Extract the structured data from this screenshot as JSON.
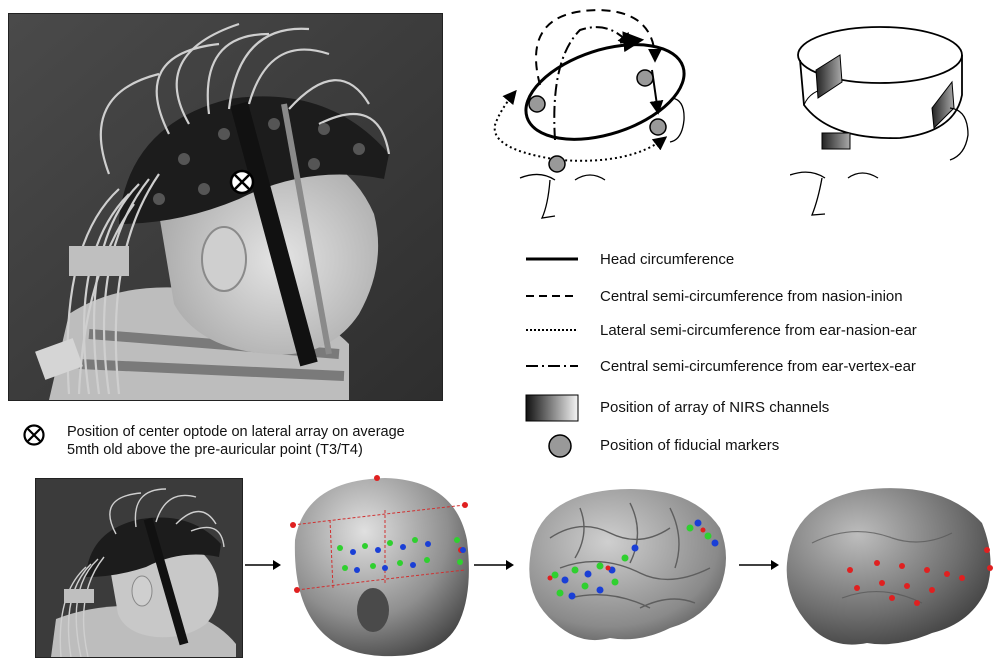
{
  "legend": {
    "head_circumference": "Head circumference",
    "central_nasion_inion": "Central semi-circumference from nasion-inion",
    "lateral_ear_nasion_ear": "Lateral semi-circumference from ear-nasion-ear",
    "central_ear_vertex_ear": "Central semi-circumference from ear-vertex-ear",
    "array_position": "Position of array of NIRS channels",
    "fiducial_markers": "Position of fiducial markers"
  },
  "optode_caption": {
    "line1": "Position of center optode on lateral array on average",
    "line2": "5mth old above the pre-auricular point (T3/T4)"
  },
  "colors": {
    "photo_bg": "#3a3a3a",
    "fiducial_fill": "#999999",
    "channel_red": "#e02020",
    "channel_green": "#2fd02f",
    "channel_blue": "#1a3fd6"
  }
}
